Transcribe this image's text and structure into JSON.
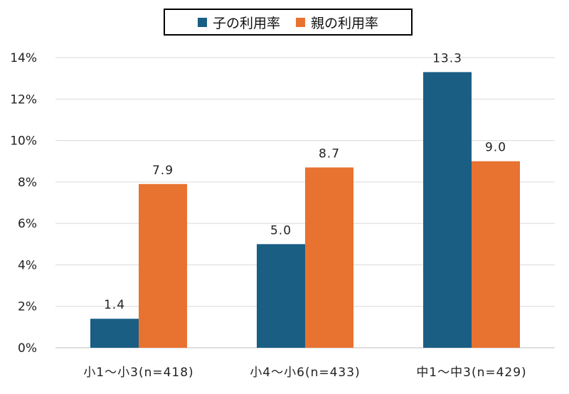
{
  "chart_data": {
    "type": "bar",
    "categories": [
      "小1～小3(n=418)",
      "小4～小6(n=433)",
      "中1～中3(n=429)"
    ],
    "series": [
      {
        "name": "子の利用率",
        "values": [
          1.4,
          5.0,
          13.3
        ],
        "labels": [
          "1.4",
          "5.0",
          "13.3"
        ],
        "color": "#1a5e84"
      },
      {
        "name": "親の利用率",
        "values": [
          7.9,
          8.7,
          9.0
        ],
        "labels": [
          "7.9",
          "8.7",
          "9.0"
        ],
        "color": "#e87230"
      }
    ],
    "ylim": [
      0,
      14
    ],
    "yticks": [
      "0%",
      "2%",
      "4%",
      "6%",
      "8%",
      "10%",
      "12%",
      "14%"
    ],
    "grid": true,
    "legend": "top-center"
  }
}
